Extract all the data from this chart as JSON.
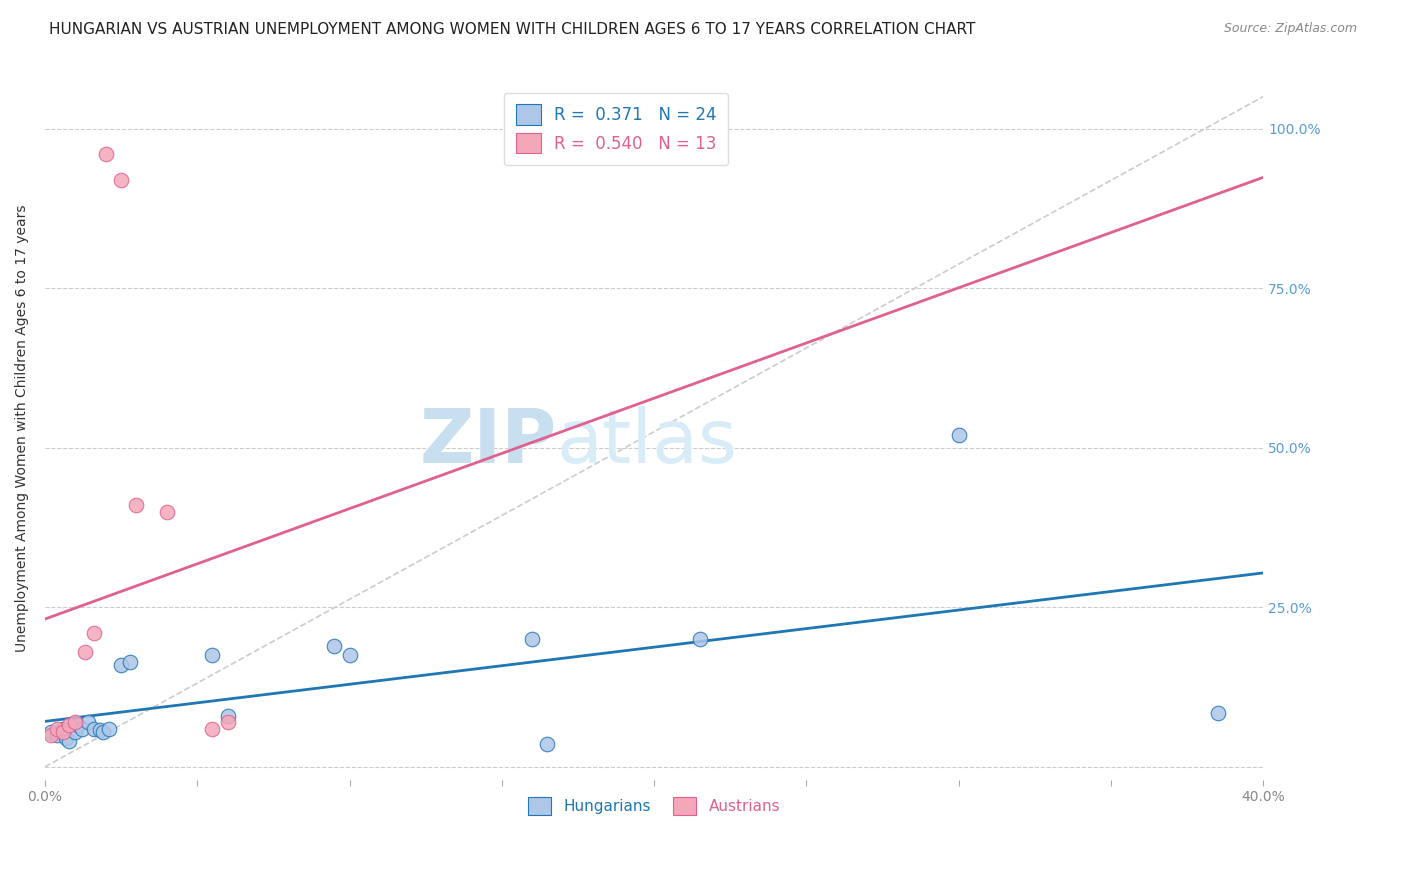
{
  "title": "HUNGARIAN VS AUSTRIAN UNEMPLOYMENT AMONG WOMEN WITH CHILDREN AGES 6 TO 17 YEARS CORRELATION CHART",
  "source": "Source: ZipAtlas.com",
  "ylabel": "Unemployment Among Women with Children Ages 6 to 17 years",
  "xlim": [
    0.0,
    0.4
  ],
  "ylim": [
    -0.02,
    1.08
  ],
  "xticks": [
    0.0,
    0.05,
    0.1,
    0.15,
    0.2,
    0.25,
    0.3,
    0.35,
    0.4
  ],
  "xtick_labels": [
    "0.0%",
    "",
    "",
    "",
    "",
    "",
    "",
    "",
    "40.0%"
  ],
  "yticks_right": [
    0.0,
    0.25,
    0.5,
    0.75,
    1.0
  ],
  "ytick_labels_right": [
    "",
    "25.0%",
    "50.0%",
    "75.0%",
    "100.0%"
  ],
  "hungarian_x": [
    0.002,
    0.004,
    0.006,
    0.007,
    0.008,
    0.01,
    0.011,
    0.012,
    0.014,
    0.016,
    0.018,
    0.019,
    0.021,
    0.025,
    0.028,
    0.055,
    0.06,
    0.095,
    0.1,
    0.16,
    0.165,
    0.215,
    0.3,
    0.385
  ],
  "hungarian_y": [
    0.055,
    0.05,
    0.06,
    0.045,
    0.04,
    0.055,
    0.065,
    0.06,
    0.07,
    0.06,
    0.058,
    0.055,
    0.06,
    0.16,
    0.165,
    0.175,
    0.08,
    0.19,
    0.175,
    0.2,
    0.035,
    0.2,
    0.52,
    0.085
  ],
  "austrian_x": [
    0.002,
    0.004,
    0.006,
    0.008,
    0.01,
    0.013,
    0.016,
    0.02,
    0.025,
    0.03,
    0.04,
    0.055,
    0.06
  ],
  "austrian_y": [
    0.05,
    0.06,
    0.055,
    0.065,
    0.07,
    0.18,
    0.21,
    0.96,
    0.92,
    0.41,
    0.4,
    0.06,
    0.07
  ],
  "hungarian_R": 0.371,
  "hungarian_N": 24,
  "austrian_R": 0.54,
  "austrian_N": 13,
  "hungarian_color": "#aec6e8",
  "austrian_color": "#f4a7b9",
  "hungarian_line_color": "#1f77b4",
  "austrian_line_color": "#e06090",
  "ref_line_color": "#cccccc",
  "marker_size": 110,
  "watermark": "ZIPatlas",
  "watermark_color": "#d8ecf8",
  "grid_color": "#cccccc",
  "title_fontsize": 11,
  "axis_label_fontsize": 10,
  "tick_fontsize": 10,
  "right_tick_color": "#5b9bd5"
}
